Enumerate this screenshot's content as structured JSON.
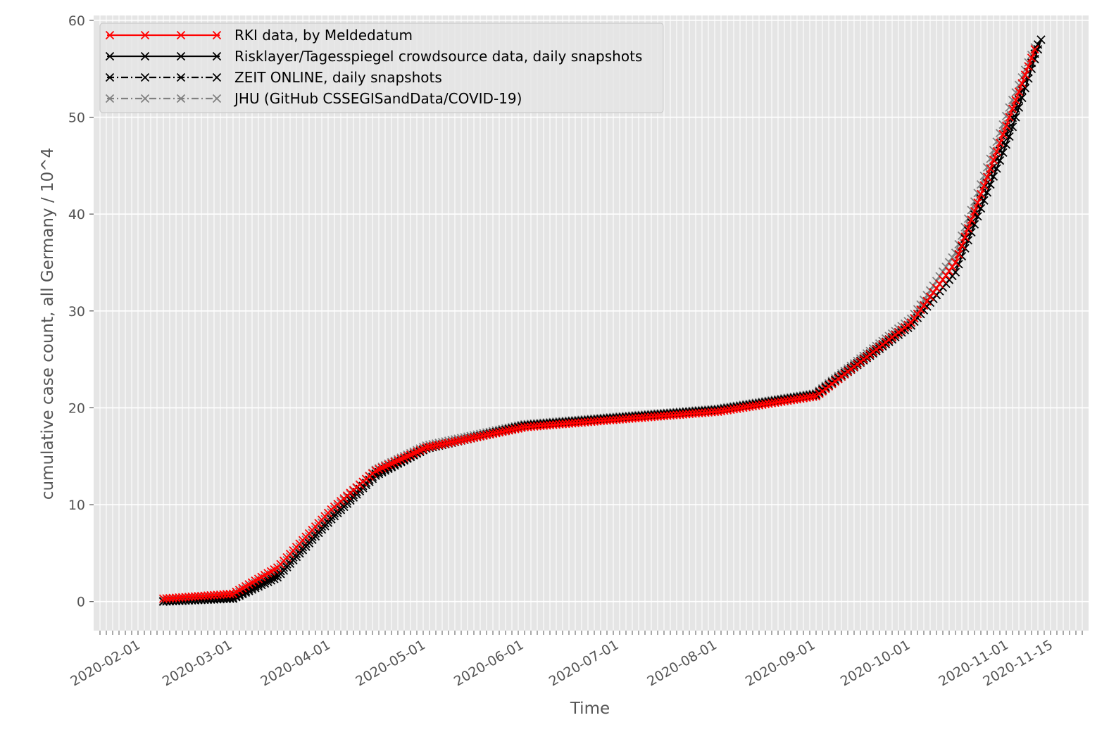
{
  "chart_data": {
    "type": "line",
    "title": "",
    "xlabel": "Time",
    "ylabel": "cumulative case count, all Germany / 10^4",
    "ylim": [
      -3,
      60.5
    ],
    "yticks": [
      0,
      10,
      20,
      30,
      40,
      50,
      60
    ],
    "grid": true,
    "legend_position": "top-left",
    "x_domain": [
      "2020-01-17",
      "2020-11-26"
    ],
    "x_tick_labels": [
      "2020-02-01",
      "2020-03-01",
      "2020-04-01",
      "2020-05-01",
      "2020-06-01",
      "2020-07-01",
      "2020-08-01",
      "2020-09-01",
      "2020-10-01",
      "2020-11-01",
      "2020-11-15"
    ],
    "series": [
      {
        "name": "RKI data, by Meldedatum",
        "color": "#ff0000",
        "line_style": "solid",
        "marker": "x",
        "points": [
          [
            "2020-02-08",
            0.3
          ],
          [
            "2020-03-01",
            0.8
          ],
          [
            "2020-03-15",
            3.5
          ],
          [
            "2020-04-01",
            9.5
          ],
          [
            "2020-04-15",
            13.5
          ],
          [
            "2020-05-01",
            15.9
          ],
          [
            "2020-06-01",
            18.0
          ],
          [
            "2020-07-01",
            18.8
          ],
          [
            "2020-08-01",
            19.6
          ],
          [
            "2020-09-01",
            21.2
          ],
          [
            "2020-10-01",
            28.8
          ],
          [
            "2020-10-15",
            35.0
          ],
          [
            "2020-11-01",
            50.0
          ],
          [
            "2020-11-09",
            57.0
          ]
        ]
      },
      {
        "name": "Risklayer/Tagesspiegel crowdsource data, daily snapshots",
        "color": "#000000",
        "line_style": "solid",
        "marker": "x",
        "points": [
          [
            "2020-02-08",
            0.0
          ],
          [
            "2020-03-01",
            0.3
          ],
          [
            "2020-03-15",
            2.5
          ],
          [
            "2020-04-01",
            8.5
          ],
          [
            "2020-04-15",
            13.0
          ],
          [
            "2020-05-01",
            15.8
          ],
          [
            "2020-06-01",
            18.1
          ],
          [
            "2020-07-01",
            19.0
          ],
          [
            "2020-08-01",
            19.8
          ],
          [
            "2020-09-01",
            21.3
          ],
          [
            "2020-10-01",
            28.5
          ],
          [
            "2020-10-15",
            34.0
          ],
          [
            "2020-11-01",
            48.0
          ],
          [
            "2020-11-11",
            58.0
          ]
        ]
      },
      {
        "name": "ZEIT ONLINE, daily snapshots",
        "color": "#000000",
        "line_style": "dashdot",
        "marker": "x",
        "points": [
          [
            "2020-02-08",
            0.0
          ],
          [
            "2020-03-01",
            0.4
          ],
          [
            "2020-03-15",
            2.8
          ],
          [
            "2020-04-01",
            8.8
          ],
          [
            "2020-04-15",
            13.2
          ],
          [
            "2020-05-01",
            15.8
          ],
          [
            "2020-06-01",
            18.2
          ],
          [
            "2020-07-01",
            19.0
          ],
          [
            "2020-08-01",
            19.8
          ],
          [
            "2020-09-01",
            21.4
          ],
          [
            "2020-10-01",
            28.8
          ],
          [
            "2020-10-15",
            35.0
          ],
          [
            "2020-11-01",
            49.0
          ],
          [
            "2020-11-10",
            57.5
          ]
        ]
      },
      {
        "name": "JHU (GitHub CSSEGISandData/COVID-19)",
        "color": "#808080",
        "line_style": "dashdot",
        "marker": "x",
        "points": [
          [
            "2020-02-08",
            0.1
          ],
          [
            "2020-03-01",
            0.6
          ],
          [
            "2020-03-15",
            3.2
          ],
          [
            "2020-04-01",
            9.2
          ],
          [
            "2020-04-15",
            13.6
          ],
          [
            "2020-05-01",
            16.1
          ],
          [
            "2020-06-01",
            18.3
          ],
          [
            "2020-07-01",
            19.1
          ],
          [
            "2020-08-01",
            19.9
          ],
          [
            "2020-09-01",
            21.5
          ],
          [
            "2020-10-01",
            29.2
          ],
          [
            "2020-10-15",
            36.0
          ],
          [
            "2020-11-01",
            51.0
          ],
          [
            "2020-11-09",
            57.2
          ]
        ]
      }
    ]
  }
}
